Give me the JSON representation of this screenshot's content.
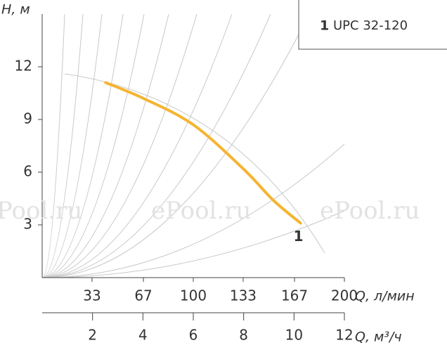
{
  "chart_data": {
    "type": "line",
    "y_label": "H, м",
    "x_label": "Q, л/мин",
    "x2_label": "Q, м³/ч",
    "xlim": [
      0,
      200
    ],
    "xticks": [
      33,
      67,
      100,
      133,
      167,
      200
    ],
    "x2lim": [
      0,
      12
    ],
    "x2ticks": [
      2,
      4,
      6,
      8,
      10,
      12
    ],
    "ylim": [
      0,
      15
    ],
    "yticks": [
      3,
      6,
      9,
      12
    ],
    "series": [
      {
        "name": "UPC 32-120",
        "label": "1",
        "color": "#f5b431",
        "x": [
          42,
          67,
          100,
          133,
          153,
          171
        ],
        "values": [
          11.1,
          10.2,
          8.7,
          6.2,
          4.4,
          3.1
        ]
      }
    ],
    "watermarks": [
      "Pool.ru",
      "ePool.ru",
      "ePool.ru"
    ]
  }
}
